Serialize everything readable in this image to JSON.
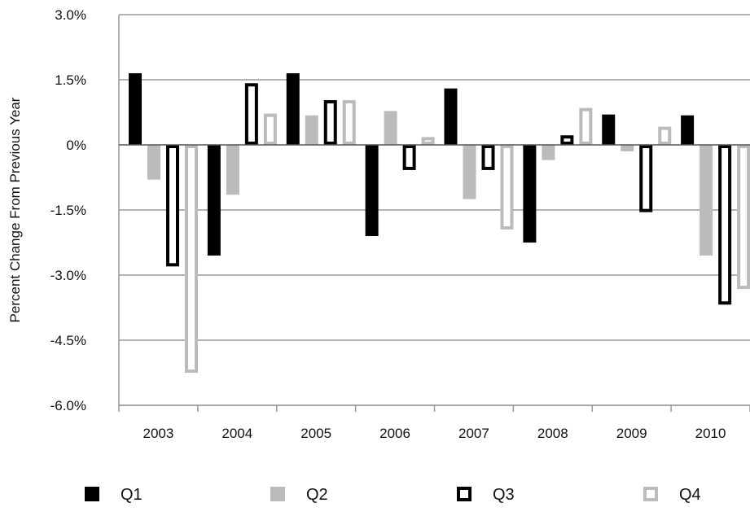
{
  "chart_data": {
    "type": "bar",
    "title": "",
    "xlabel": "",
    "ylabel": "Percent Change From Previous Year",
    "categories": [
      "2003",
      "2004",
      "2005",
      "2006",
      "2007",
      "2008",
      "2009",
      "2010"
    ],
    "ylim": [
      -6.0,
      3.0
    ],
    "yticks": [
      3.0,
      1.5,
      0,
      -1.5,
      -3.0,
      -4.5,
      -6.0
    ],
    "ytick_labels": [
      "3.0%",
      "1.5%",
      "0%",
      "-1.5%",
      "-3.0%",
      "-4.5%",
      "-6.0%"
    ],
    "grid": true,
    "legend_position": "bottom",
    "series": [
      {
        "name": "Q1",
        "style": "solid",
        "color": "#000000",
        "values": [
          1.65,
          -2.55,
          1.65,
          -2.1,
          1.3,
          -2.25,
          0.7,
          0.68
        ]
      },
      {
        "name": "Q2",
        "style": "solid",
        "color": "#bbbbbb",
        "values": [
          -0.8,
          -1.15,
          0.68,
          0.78,
          -1.25,
          -0.35,
          -0.15,
          -2.55
        ]
      },
      {
        "name": "Q3",
        "style": "outline",
        "color": "#000000",
        "values": [
          -2.8,
          1.42,
          1.03,
          -0.58,
          -0.58,
          0.22,
          -1.55,
          -3.68
        ]
      },
      {
        "name": "Q4",
        "style": "outline",
        "color": "#bbbbbb",
        "values": [
          -5.25,
          0.72,
          1.03,
          0.18,
          -1.95,
          0.85,
          0.42,
          -3.32
        ]
      }
    ]
  }
}
